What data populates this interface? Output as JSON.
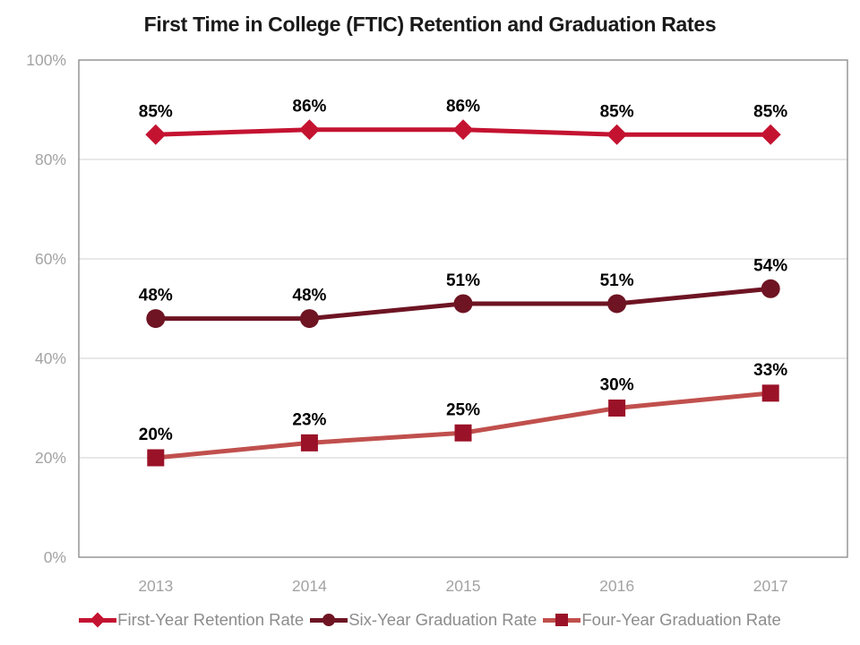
{
  "title": "First Time in College (FTIC) Retention and Graduation Rates",
  "chart_data": {
    "type": "line",
    "categories": [
      "2013",
      "2014",
      "2015",
      "2016",
      "2017"
    ],
    "series": [
      {
        "name": "First-Year Retention Rate",
        "values": [
          85,
          86,
          86,
          85,
          85
        ],
        "labels": [
          "85%",
          "86%",
          "86%",
          "85%",
          "85%"
        ],
        "line_color": "#c41331",
        "marker": "diamond",
        "marker_color": "#c41331"
      },
      {
        "name": "Six-Year Graduation Rate",
        "values": [
          48,
          48,
          51,
          51,
          54
        ],
        "labels": [
          "48%",
          "48%",
          "51%",
          "51%",
          "54%"
        ],
        "line_color": "#6e1423",
        "marker": "circle",
        "marker_color": "#6e1423"
      },
      {
        "name": "Four-Year Graduation Rate",
        "values": [
          20,
          23,
          25,
          30,
          33
        ],
        "labels": [
          "20%",
          "23%",
          "25%",
          "30%",
          "33%"
        ],
        "line_color": "#c0504d",
        "marker": "square",
        "marker_color": "#9a1228"
      }
    ],
    "ylim": [
      0,
      100
    ],
    "yticks": [
      {
        "value": 0,
        "label": "0%"
      },
      {
        "value": 20,
        "label": "20%"
      },
      {
        "value": 40,
        "label": "40%"
      },
      {
        "value": 60,
        "label": "60%"
      },
      {
        "value": 80,
        "label": "80%"
      },
      {
        "value": 100,
        "label": "100%"
      }
    ],
    "grid": "horizontal",
    "legend_position": "bottom",
    "data_label_suffix": "%"
  },
  "style_colors": {
    "grid": "#d9d9d9",
    "plot_border": "#8f8f8f",
    "tick_text": "#a3a3a3",
    "data_label_text": "#000000",
    "legend_text": "#8c8c8c",
    "title_text": "#1a1a1a"
  }
}
